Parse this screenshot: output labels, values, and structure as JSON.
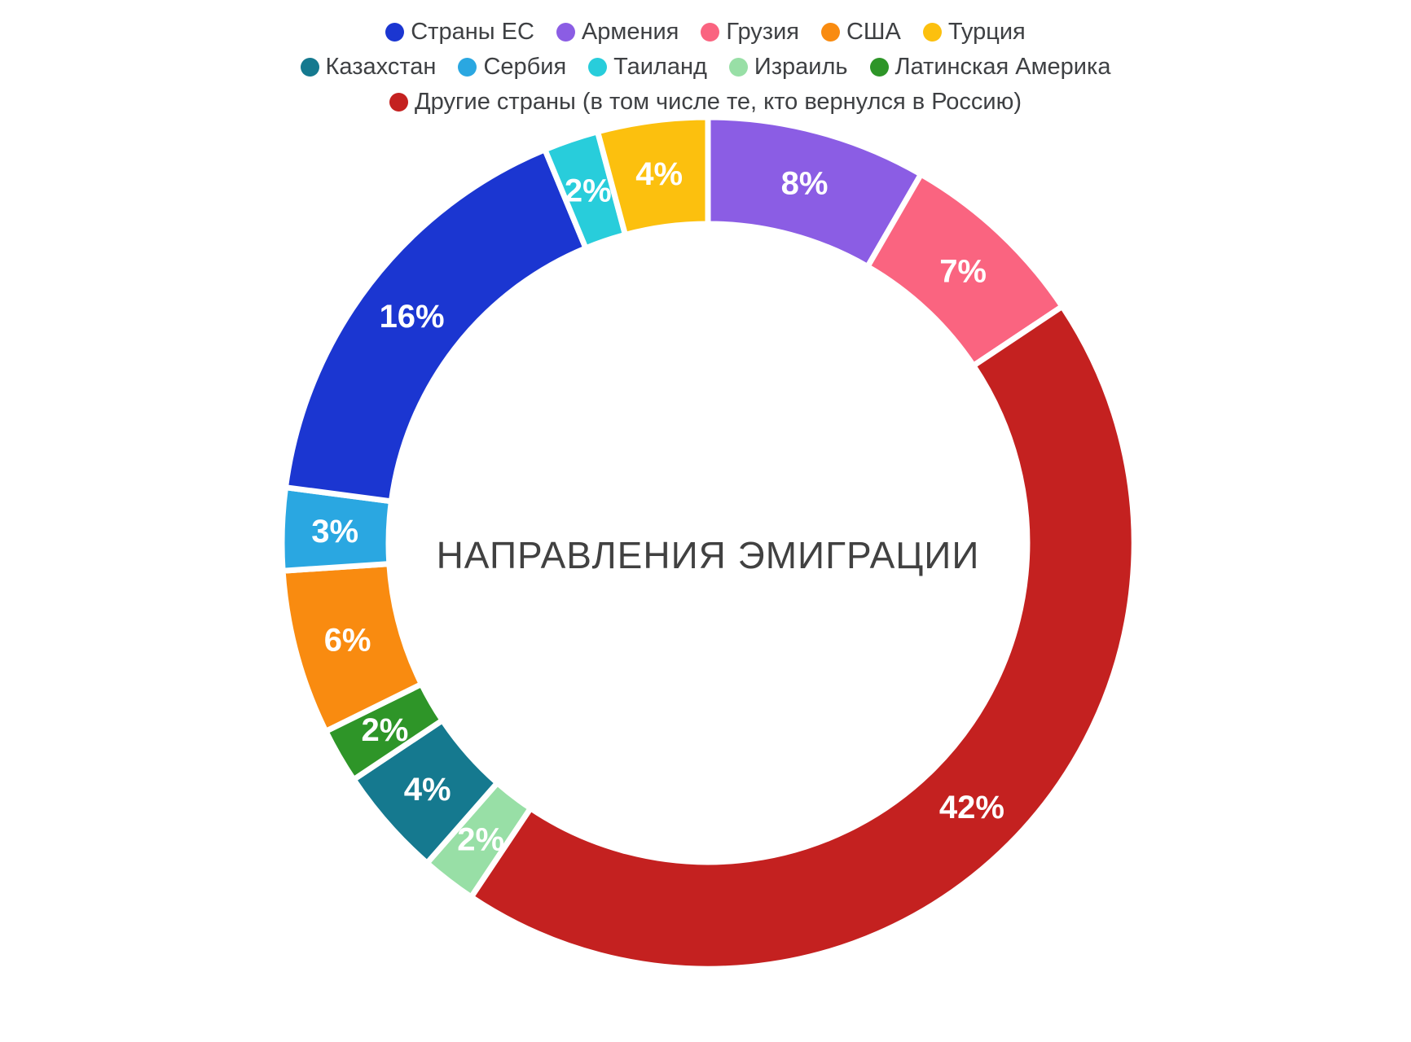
{
  "chart_data": {
    "type": "pie",
    "subtype": "donut",
    "center_title": "НАПРАВЛЕНИЯ ЭМИГРАЦИИ",
    "unit": "%",
    "direction": "clockwise",
    "start_angle_deg": 0,
    "legend_position": "top",
    "slices": [
      {
        "label": "Армения",
        "value": 8,
        "color": "#8b5de4"
      },
      {
        "label": "Грузия",
        "value": 7,
        "color": "#fa6480"
      },
      {
        "label": "Другие страны (в том числе те, кто вернулся в Россию)",
        "value": 42,
        "color": "#c42120"
      },
      {
        "label": "Израиль",
        "value": 2,
        "color": "#98dfa6"
      },
      {
        "label": "Казахстан",
        "value": 4,
        "color": "#15798f"
      },
      {
        "label": "Латинская Америка",
        "value": 2,
        "color": "#2e9528"
      },
      {
        "label": "США",
        "value": 6,
        "color": "#f98b10"
      },
      {
        "label": "Сербия",
        "value": 3,
        "color": "#2aa7e1"
      },
      {
        "label": "Страны ЕС",
        "value": 16,
        "color": "#1b36d1"
      },
      {
        "label": "Таиланд",
        "value": 2,
        "color": "#28cddb"
      },
      {
        "label": "Турция",
        "value": 4,
        "color": "#fcc00e"
      }
    ],
    "value_labels": [
      "8%",
      "7%",
      "42%",
      "2%",
      "4%",
      "2%",
      "6%",
      "3%",
      "16%",
      "2%",
      "4%"
    ],
    "center_title_color": "#414141",
    "legend_text_color": "#3e4043"
  },
  "legend": {
    "rows": [
      [
        "Страны ЕС",
        "Армения",
        "Грузия",
        "США",
        "Турция"
      ],
      [
        "Казахстан",
        "Сербия",
        "Таиланд",
        "Израиль",
        "Латинская Америка"
      ],
      [
        "Другие страны (в том числе те, кто вернулся в Россию)"
      ]
    ]
  }
}
